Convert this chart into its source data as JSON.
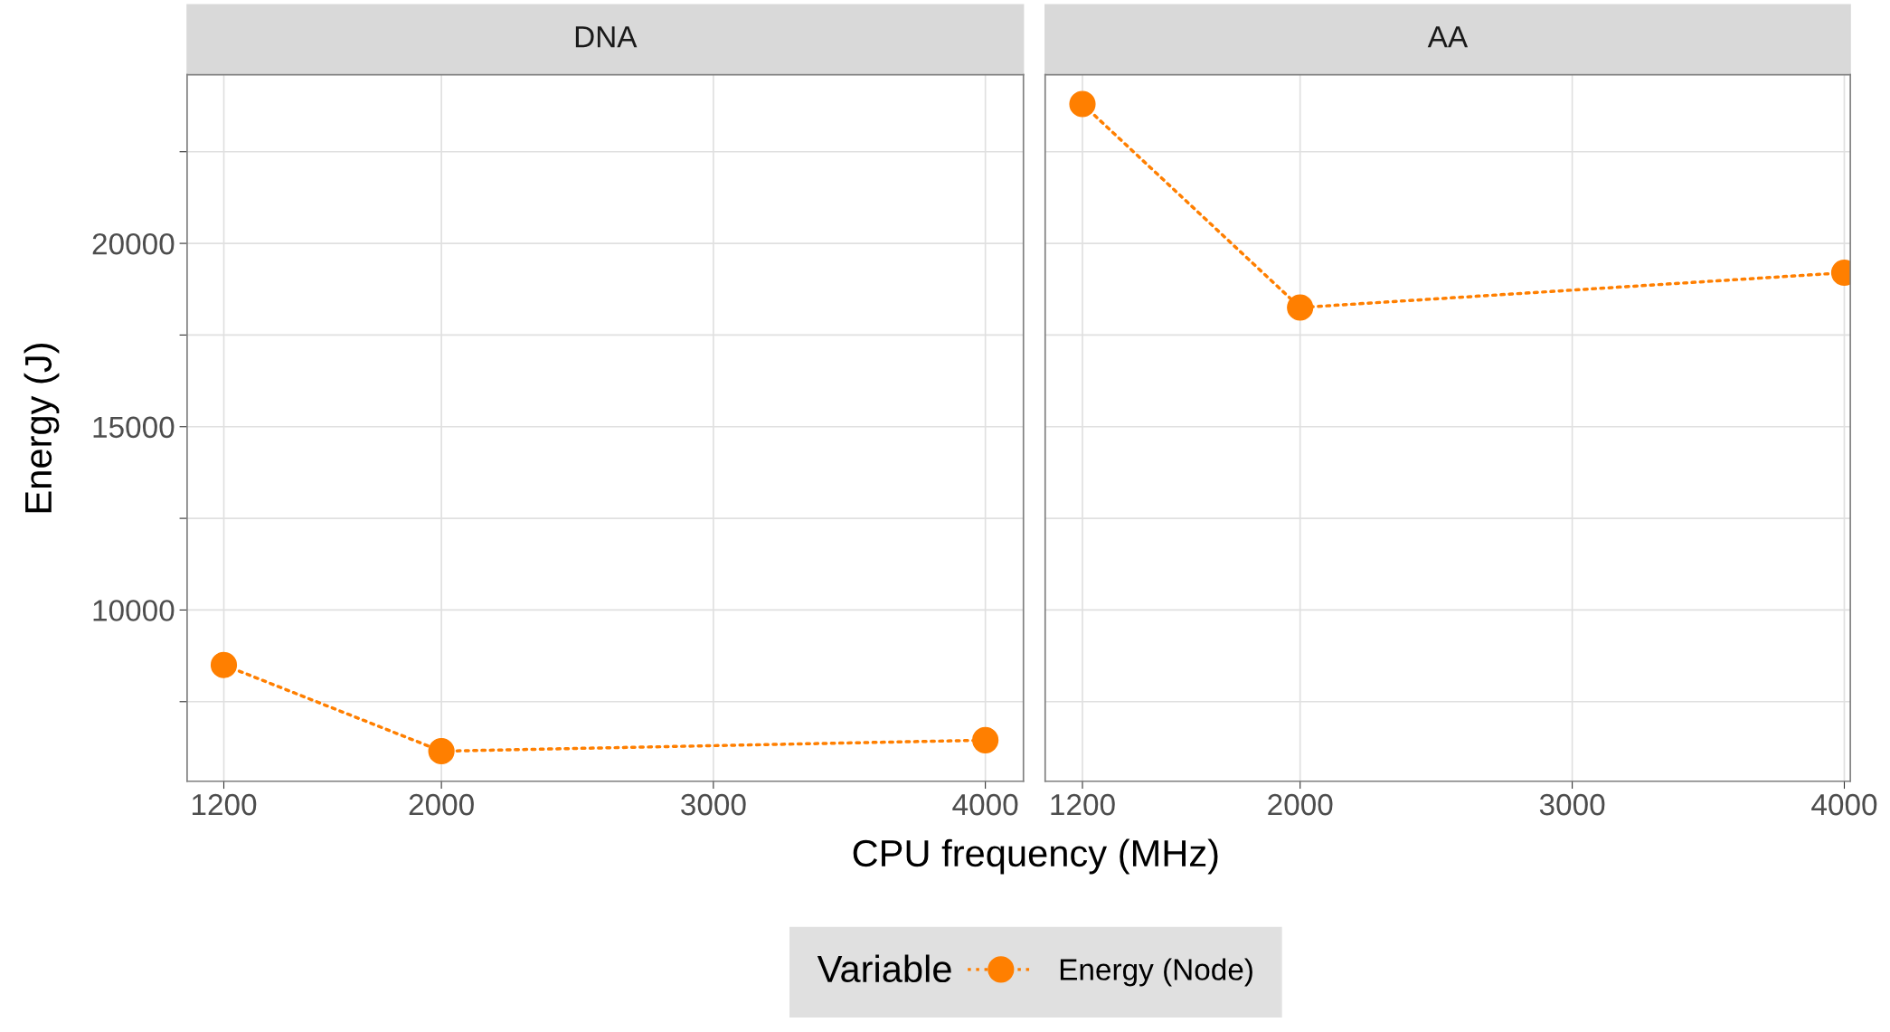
{
  "chart_data": [
    {
      "type": "line",
      "title": "DNA",
      "xlabel": "CPU frequency (MHz)",
      "ylabel": "Energy (J)",
      "legend_title": "Variable",
      "legend": "bottom",
      "x": [
        1200,
        2000,
        4000
      ],
      "series": [
        {
          "name": "Energy (Node)",
          "color": "#ff7f00",
          "values": [
            8500,
            6150,
            6450
          ]
        }
      ],
      "xlim": [
        1065,
        4140
      ],
      "ylim": [
        5330,
        24600
      ],
      "xticks": [
        1200,
        2000,
        3000,
        4000
      ],
      "yticks": [
        {
          "value": 7500,
          "label": null
        },
        10000,
        {
          "value": 12500,
          "label": null
        },
        15000,
        {
          "value": 17500,
          "label": null
        },
        20000,
        {
          "value": 22500,
          "label": null
        }
      ],
      "grid": true,
      "marker": "circle",
      "line_style": "dotted"
    },
    {
      "type": "line",
      "title": "AA",
      "x": [
        1200,
        2000,
        4000
      ],
      "series": [
        {
          "color": "#ff7f00",
          "values": [
            23800,
            18250,
            19200
          ]
        }
      ],
      "xlim": [
        1063,
        4022
      ],
      "ylim": [
        5330,
        24600
      ],
      "xticks": [
        1200,
        2000,
        3000,
        4000
      ],
      "yticks": [
        {
          "value": 7500,
          "label": null
        },
        10000,
        {
          "value": 12500,
          "label": null
        },
        15000,
        {
          "value": 17500,
          "label": null
        },
        20000,
        {
          "value": 22500,
          "label": null
        }
      ],
      "tick_labels": "x",
      "grid": true,
      "marker": "circle",
      "line_style": "dotted"
    }
  ]
}
